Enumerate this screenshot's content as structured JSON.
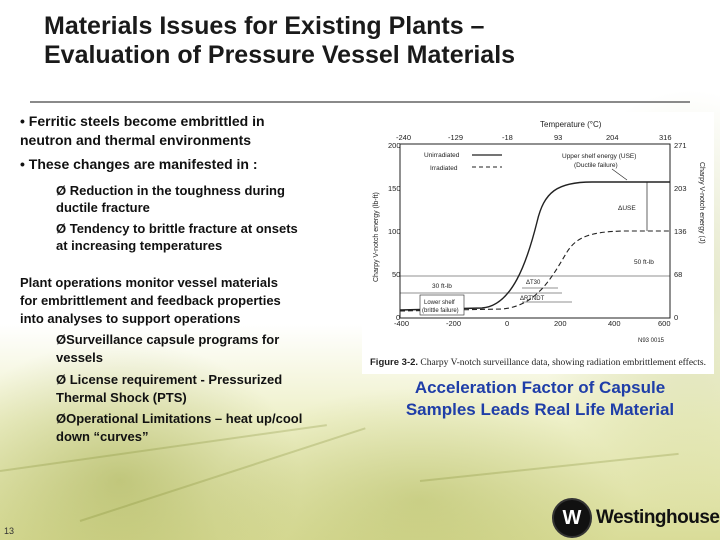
{
  "title": {
    "line1": "Materials Issues for Existing Plants –",
    "line2": "Evaluation of Pressure Vessel Materials"
  },
  "bullets": {
    "b1_line1": "• Ferritic steels become embrittled in",
    "b1_line2": "neutron and thermal environments",
    "b2": "• These changes are manifested in :",
    "s1_line1": "Ø Reduction in the toughness during",
    "s1_line2": "ductile fracture",
    "s2_line1": "Ø Tendency to brittle fracture at onsets",
    "s2_line2": "at increasing temperatures"
  },
  "operations": {
    "p1": "Plant operations monitor vessel materials",
    "p2": "for embrittlement and feedback properties",
    "p3": "into analyses to support operations",
    "i1": "ØSurveillance capsule programs for",
    "i1b": "vessels",
    "i2": "Ø License requirement - Pressurized",
    "i2b": "Thermal Shock (PTS)",
    "i3": "ØOperational Limitations – heat up/cool",
    "i3b": "down “curves”"
  },
  "figure": {
    "top_axis_title": "Temperature (°C)",
    "top_ticks": [
      "-240",
      "-129",
      "-18",
      "93",
      "204",
      "316"
    ],
    "bottom_ticks": [
      "-400",
      "-200",
      "0",
      "200",
      "400",
      "600"
    ],
    "left_ticks": [
      "0",
      "50",
      "100",
      "150",
      "200"
    ],
    "right_ticks": [
      "0",
      "68",
      "136",
      "203",
      "271"
    ],
    "ylabel_left": "Charpy V-notch energy (lb-ft)",
    "ylabel_right": "Charpy V-notch energy (J)",
    "legend_unirradiated": "Unirradiated",
    "legend_irradiated": "Irradiated",
    "use_label_1": "Upper shelf energy (USE)",
    "use_label_2": "(Ductile failure)",
    "delta_use": "ΔUSE",
    "ft_lb_50": "50 ft-lb",
    "ft_lb_30": "30 ft-lb",
    "lower_shelf_1": "Lower shelf",
    "lower_shelf_2": "(brittle failure)",
    "delta_t30": "ΔT30",
    "delta_rt": "ΔRTNDT",
    "code": "N93 0015",
    "caption_prefix": "Figure 3-2.",
    "caption_text": "Charpy V-notch surveillance data, showing radiation embrittlement effects."
  },
  "accel": {
    "line1": "Acceleration Factor of Capsule",
    "line2": "Samples Leads Real Life Material"
  },
  "page_number": "13",
  "logo": {
    "glyph": "W",
    "word": "Westinghouse"
  }
}
